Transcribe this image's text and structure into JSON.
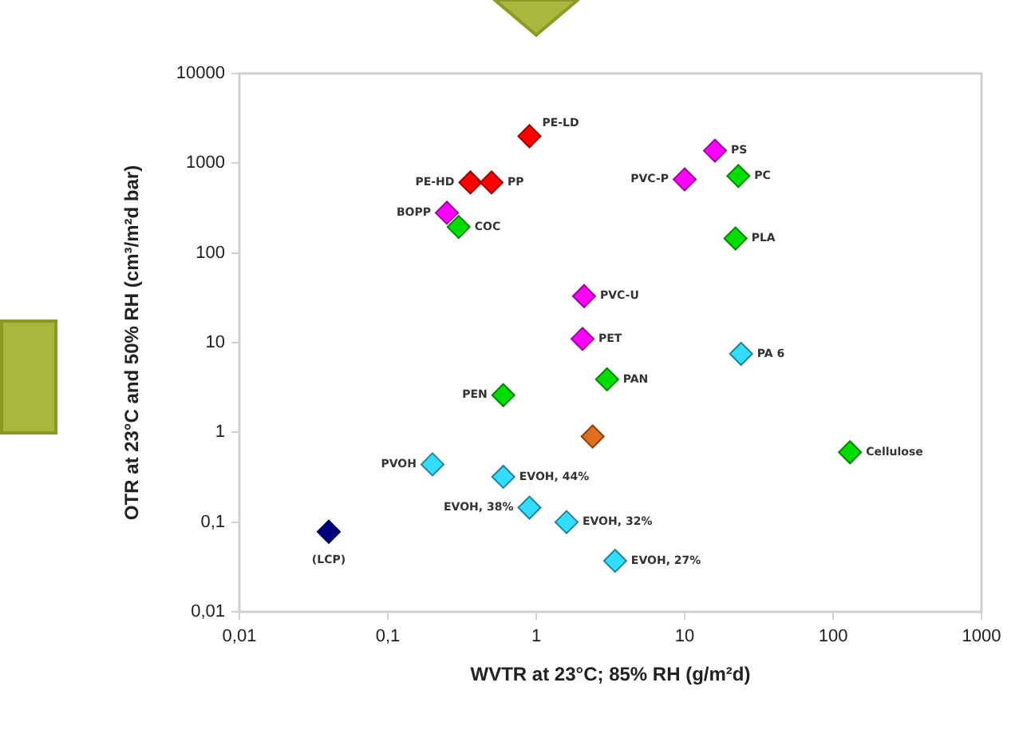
{
  "chart_data": {
    "type": "scatter",
    "xlabel": "WVTR at 23°C; 85% RH (g/m²d)",
    "ylabel": "OTR at 23°C and 50% RH (cm³/m²d bar)",
    "log": "xy",
    "marker": "diamond",
    "grid": false,
    "legend": false,
    "xlim": [
      0.01,
      1000
    ],
    "xticks": [
      {
        "value": 0.01,
        "label": "0,01"
      },
      {
        "value": 0.1,
        "label": "0,1"
      },
      1,
      10,
      100,
      1000
    ],
    "ylim": [
      0.01,
      10000
    ],
    "yticks": [
      {
        "value": 0.01,
        "label": "0,01"
      },
      {
        "value": 0.1,
        "label": "0,1"
      },
      1,
      10,
      100,
      1000,
      10000
    ],
    "series": [
      {
        "color": "#ff0000",
        "x": [
          0.9,
          0.36,
          0.5
        ],
        "values": [
          2000,
          610,
          610
        ]
      },
      {
        "color": "#ff00ff",
        "x": [
          0.25,
          16,
          10,
          2.1,
          2.05
        ],
        "values": [
          280,
          1380,
          660,
          33,
          11
        ]
      },
      {
        "color": "#00dd00",
        "x": [
          0.3,
          23,
          22,
          3,
          0.6,
          130
        ],
        "values": [
          195,
          720,
          145,
          3.9,
          2.6,
          0.6
        ]
      },
      {
        "color": "#33ddff",
        "x": [
          24,
          0.2,
          0.6,
          0.9,
          1.6,
          3.4
        ],
        "values": [
          7.5,
          0.44,
          0.32,
          0.145,
          0.1,
          0.037
        ]
      },
      {
        "color": "#e07020",
        "x": [
          2.4
        ],
        "values": [
          0.9
        ]
      },
      {
        "color": "#000080",
        "x": [
          0.04
        ],
        "values": [
          0.078
        ]
      }
    ],
    "annotations": [
      {
        "text": "PE-LD",
        "x": 0.9,
        "y": 2000
      },
      {
        "text": "PE-HD",
        "x": 0.36,
        "y": 610
      },
      {
        "text": "PP",
        "x": 0.5,
        "y": 610
      },
      {
        "text": "BOPP",
        "x": 0.25,
        "y": 280
      },
      {
        "text": "COC",
        "x": 0.3,
        "y": 195
      },
      {
        "text": "PS",
        "x": 16,
        "y": 1380
      },
      {
        "text": "PVC-P",
        "x": 10,
        "y": 660
      },
      {
        "text": "PC",
        "x": 23,
        "y": 720
      },
      {
        "text": "PLA",
        "x": 22,
        "y": 145
      },
      {
        "text": "PVC-U",
        "x": 2.1,
        "y": 33
      },
      {
        "text": "PET",
        "x": 2.05,
        "y": 11
      },
      {
        "text": "PA 6",
        "x": 24,
        "y": 7.5
      },
      {
        "text": "PAN",
        "x": 3,
        "y": 3.9
      },
      {
        "text": "PEN",
        "x": 0.6,
        "y": 2.6
      },
      {
        "text": "Cellulose",
        "x": 130,
        "y": 0.6
      },
      {
        "text": "PVOH",
        "x": 0.2,
        "y": 0.44
      },
      {
        "text": "EVOH, 44%",
        "x": 0.6,
        "y": 0.32
      },
      {
        "text": "EVOH, 38%",
        "x": 0.9,
        "y": 0.145
      },
      {
        "text": "EVOH, 32%",
        "x": 1.6,
        "y": 0.1
      },
      {
        "text": "EVOH, 27%",
        "x": 3.4,
        "y": 0.037
      },
      {
        "text": "(LCP)",
        "x": 0.04,
        "y": 0.078
      }
    ]
  }
}
